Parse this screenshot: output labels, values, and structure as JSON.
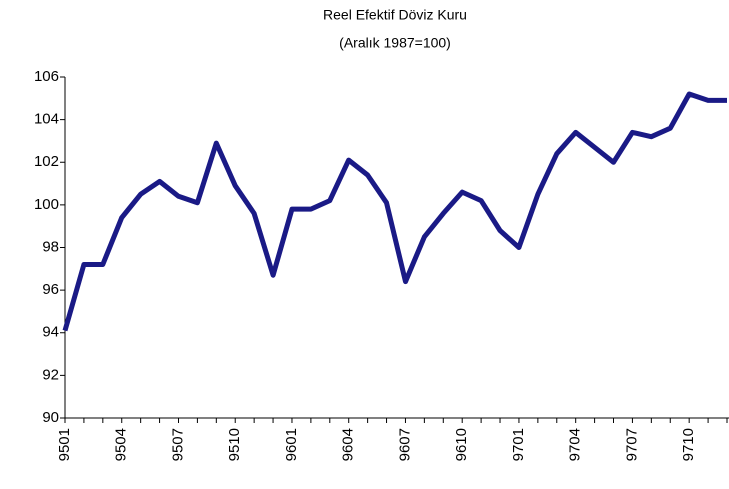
{
  "chart_data": {
    "type": "line",
    "title": "Reel Efektif Döviz Kuru",
    "subtitle": "(Aralık 1987=100)",
    "categories": [
      "9501",
      null,
      null,
      "9504",
      null,
      null,
      "9507",
      null,
      null,
      "9510",
      null,
      null,
      "9601",
      null,
      null,
      "9604",
      null,
      null,
      "9607",
      null,
      null,
      "9610",
      null,
      null,
      "9701",
      null,
      null,
      "9704",
      null,
      null,
      "9707",
      null,
      null,
      "9710",
      null,
      null
    ],
    "series": [
      {
        "name": "Reel Efektif Döviz Kuru",
        "color": "#1a1a86",
        "values": [
          94.1,
          97.2,
          97.2,
          99.4,
          100.5,
          101.1,
          100.4,
          100.1,
          102.9,
          100.9,
          99.6,
          96.7,
          99.8,
          99.8,
          100.2,
          102.1,
          101.4,
          100.1,
          96.4,
          98.5,
          99.6,
          100.6,
          100.2,
          98.8,
          98.0,
          100.5,
          102.4,
          103.4,
          102.7,
          102.0,
          103.4,
          103.2,
          103.6,
          105.2,
          104.9,
          104.9
        ]
      }
    ],
    "ylim": [
      90,
      106
    ],
    "yticks": [
      90,
      92,
      94,
      96,
      98,
      100,
      102,
      104,
      106
    ],
    "grid": false
  }
}
